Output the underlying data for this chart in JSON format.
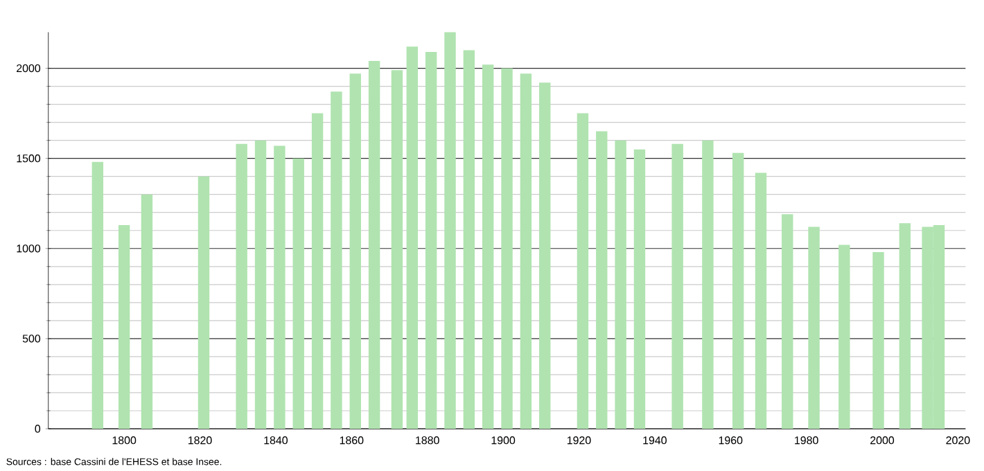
{
  "chart_data": {
    "type": "bar",
    "x": [
      1793,
      1800,
      1806,
      1821,
      1831,
      1836,
      1841,
      1846,
      1851,
      1856,
      1861,
      1866,
      1872,
      1876,
      1881,
      1886,
      1891,
      1896,
      1901,
      1906,
      1911,
      1921,
      1926,
      1931,
      1936,
      1946,
      1954,
      1962,
      1968,
      1975,
      1982,
      1990,
      1999,
      2006,
      2012,
      2015
    ],
    "values": [
      1480,
      1130,
      1300,
      1400,
      1580,
      1600,
      1570,
      1500,
      1750,
      1870,
      1970,
      2040,
      1990,
      2120,
      2090,
      2200,
      2100,
      2020,
      2000,
      1970,
      1920,
      1750,
      1650,
      1600,
      1550,
      1580,
      1600,
      1530,
      1420,
      1190,
      1120,
      1020,
      980,
      1140,
      1120,
      1130
    ],
    "color": "#b0e3b0",
    "xlim": [
      1780,
      2022
    ],
    "xticks": [
      1800,
      1820,
      1840,
      1860,
      1880,
      1900,
      1920,
      1940,
      1960,
      1980,
      2000,
      2020
    ],
    "ylim": [
      0,
      2200
    ],
    "yticks": [
      0,
      500,
      1000,
      1500,
      2000
    ],
    "grid": "y",
    "annotations": [
      "Sources : base Cassini de l'EHESS et base Insee."
    ]
  }
}
